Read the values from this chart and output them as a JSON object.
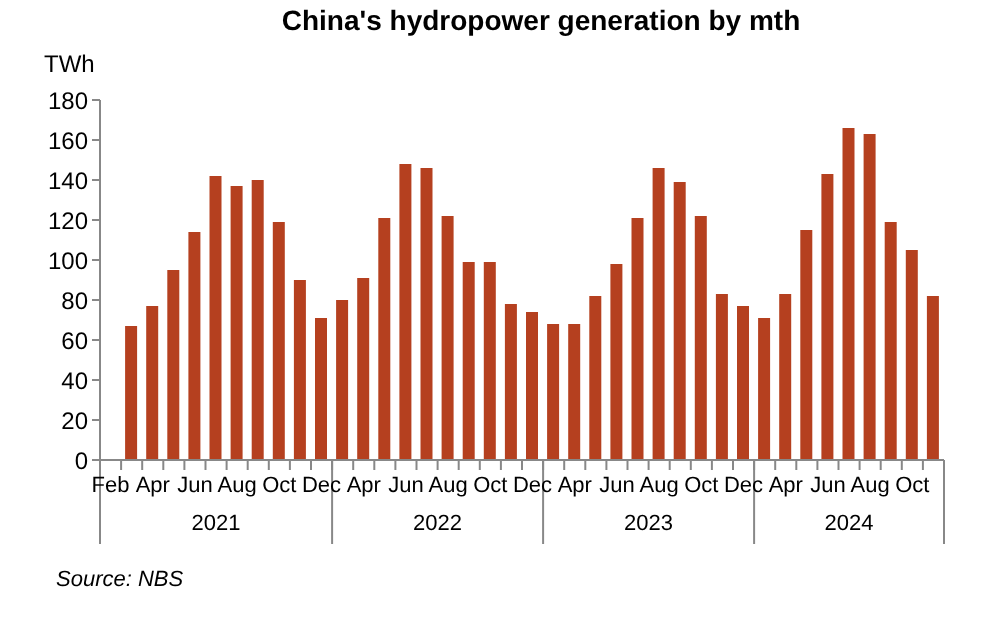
{
  "chart_data": {
    "type": "bar",
    "title": "China's hydropower generation by mth",
    "ylabel": "TWh",
    "categories": [
      "Feb",
      null,
      "Apr",
      null,
      "Jun",
      null,
      "Aug",
      null,
      "Oct",
      null,
      "Dec",
      null,
      "Apr",
      null,
      "Jun",
      null,
      "Aug",
      null,
      "Oct",
      null,
      "Dec",
      null,
      "Apr",
      null,
      "Jun",
      null,
      "Aug",
      null,
      "Oct",
      null,
      "Dec",
      null,
      "Apr",
      null,
      "Jun",
      null,
      "Aug",
      null,
      "Oct",
      null
    ],
    "values": [
      null,
      67,
      77,
      95,
      114,
      142,
      137,
      140,
      119,
      90,
      71,
      80,
      91,
      121,
      148,
      146,
      122,
      99,
      99,
      78,
      74,
      68,
      68,
      82,
      98,
      121,
      146,
      139,
      122,
      83,
      77,
      71,
      83,
      115,
      143,
      166,
      163,
      119,
      105,
      82
    ],
    "color": "#b5401f",
    "ylim": [
      0,
      180
    ],
    "yticks": [
      0,
      20,
      40,
      60,
      80,
      100,
      120,
      140,
      160,
      180
    ],
    "annotations": [
      "2021",
      "2022",
      "2023",
      "2024",
      "Source: NBS"
    ]
  }
}
